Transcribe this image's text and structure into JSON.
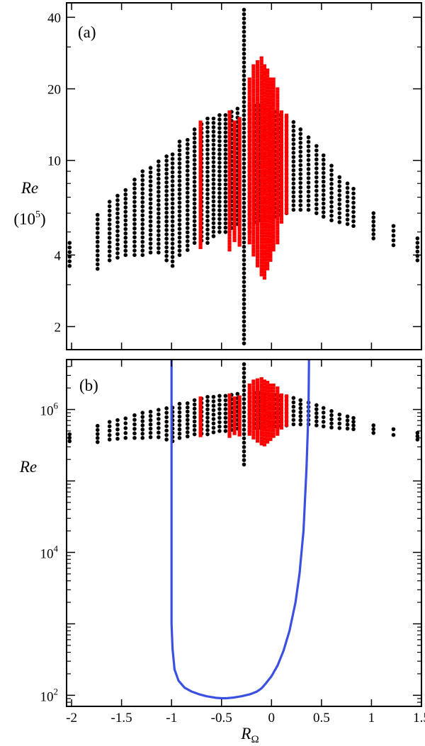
{
  "figure": {
    "background_color": "#ffffff",
    "axis_color": "#000000"
  },
  "chart_data": [
    {
      "type": "scatter",
      "panel_label": "(a)",
      "ylabel": "Re",
      "ylabel_unit": "(10",
      "ylabel_unit_exp": "5",
      "ylabel_unit_close": ")",
      "xlabel": "",
      "yscale": "log",
      "xlim": [
        -2.05,
        1.5
      ],
      "ylim": [
        1.6,
        46
      ],
      "x_ticks": [
        -2,
        -1.5,
        -1,
        -0.5,
        0,
        0.5,
        1,
        1.5
      ],
      "y_ticks": [
        2,
        4,
        10,
        20,
        40
      ],
      "y_tick_labels": [
        "2",
        "4",
        "10",
        "20",
        "40"
      ],
      "grid": false,
      "series": [
        {
          "color": "#000000",
          "marker": "circle",
          "columns": [
            {
              "x": -2.02,
              "ymin": 3.6,
              "ymax": 4.5
            },
            {
              "x": -1.74,
              "ymin": 3.5,
              "ymax": 5.9
            },
            {
              "x": -1.62,
              "ymin": 3.8,
              "ymax": 6.7
            },
            {
              "x": -1.54,
              "ymin": 3.9,
              "ymax": 7.1
            },
            {
              "x": -1.46,
              "ymin": 4.0,
              "ymax": 7.5
            },
            {
              "x": -1.37,
              "ymin": 4.0,
              "ymax": 8.3
            },
            {
              "x": -1.29,
              "ymin": 4.0,
              "ymax": 9.0
            },
            {
              "x": -1.21,
              "ymin": 4.1,
              "ymax": 9.3
            },
            {
              "x": -1.13,
              "ymin": 4.1,
              "ymax": 9.9
            },
            {
              "x": -1.05,
              "ymin": 3.8,
              "ymax": 10.4
            },
            {
              "x": -0.99,
              "ymin": 3.6,
              "ymax": 10.6
            },
            {
              "x": -0.92,
              "ymin": 4.0,
              "ymax": 12.0
            },
            {
              "x": -0.84,
              "ymin": 4.2,
              "ymax": 12.2
            },
            {
              "x": -0.77,
              "ymin": 4.5,
              "ymax": 13.5
            },
            {
              "x": -0.7,
              "ymin": 4.6,
              "ymax": 14.2
            },
            {
              "x": -0.64,
              "ymin": 4.5,
              "ymax": 15.0
            },
            {
              "x": -0.58,
              "ymin": 4.8,
              "ymax": 15.0
            },
            {
              "x": -0.52,
              "ymin": 5.0,
              "ymax": 15.5
            },
            {
              "x": -0.46,
              "ymin": 5.0,
              "ymax": 15.5
            },
            {
              "x": -0.4,
              "ymin": 5.2,
              "ymax": 16.0
            },
            {
              "x": -0.34,
              "ymin": 5.4,
              "ymax": 16.5
            },
            {
              "x": -0.275,
              "ymin": 1.7,
              "ymax": 43
            },
            {
              "x": -0.22,
              "ymin": 5.0,
              "ymax": 17.0
            },
            {
              "x": -0.17,
              "ymin": 5.5,
              "ymax": 17.0
            },
            {
              "x": -0.12,
              "ymin": 5.6,
              "ymax": 17.0
            },
            {
              "x": -0.07,
              "ymin": 5.6,
              "ymax": 16.5
            },
            {
              "x": -0.02,
              "ymin": 5.8,
              "ymax": 16.0
            },
            {
              "x": 0.03,
              "ymin": 5.8,
              "ymax": 16.0
            },
            {
              "x": 0.09,
              "ymin": 5.9,
              "ymax": 15.5
            },
            {
              "x": 0.15,
              "ymin": 6.0,
              "ymax": 15.2
            },
            {
              "x": 0.22,
              "ymin": 6.2,
              "ymax": 14.5
            },
            {
              "x": 0.29,
              "ymin": 6.2,
              "ymax": 13.5
            },
            {
              "x": 0.37,
              "ymin": 6.2,
              "ymax": 12.5
            },
            {
              "x": 0.45,
              "ymin": 6.0,
              "ymax": 11.5
            },
            {
              "x": 0.52,
              "ymin": 5.8,
              "ymax": 10.5
            },
            {
              "x": 0.6,
              "ymin": 5.6,
              "ymax": 9.5
            },
            {
              "x": 0.68,
              "ymin": 5.5,
              "ymax": 8.5
            },
            {
              "x": 0.76,
              "ymin": 5.4,
              "ymax": 8.0
            },
            {
              "x": 0.82,
              "ymin": 5.3,
              "ymax": 7.6
            },
            {
              "x": 1.02,
              "ymin": 4.7,
              "ymax": 6.0
            },
            {
              "x": 1.22,
              "ymin": 4.4,
              "ymax": 5.3
            },
            {
              "x": 1.46,
              "ymin": 3.8,
              "ymax": 4.7
            }
          ]
        },
        {
          "color": "#ff0000",
          "marker": "square",
          "columns": [
            {
              "x": -0.71,
              "ymin": 4.3,
              "ymax": 14.5
            },
            {
              "x": -0.42,
              "ymin": 4.2,
              "ymax": 16.0
            },
            {
              "x": -0.37,
              "ymin": 4.6,
              "ymax": 14.5
            },
            {
              "x": -0.32,
              "ymin": 4.4,
              "ymax": 15.0
            },
            {
              "x": -0.22,
              "ymin": 4.5,
              "ymax": 22
            },
            {
              "x": -0.18,
              "ymin": 4.0,
              "ymax": 25
            },
            {
              "x": -0.14,
              "ymin": 3.6,
              "ymax": 26
            },
            {
              "x": -0.1,
              "ymin": 3.3,
              "ymax": 27
            },
            {
              "x": -0.07,
              "ymin": 3.2,
              "ymax": 25
            },
            {
              "x": -0.04,
              "ymin": 3.5,
              "ymax": 24
            },
            {
              "x": -0.01,
              "ymin": 3.8,
              "ymax": 22
            },
            {
              "x": 0.02,
              "ymin": 4.2,
              "ymax": 22
            },
            {
              "x": 0.06,
              "ymin": 4.5,
              "ymax": 20
            },
            {
              "x": 0.1,
              "ymin": 5.5,
              "ymax": 16.0
            },
            {
              "x": 0.15,
              "ymin": 6.0,
              "ymax": 15.5
            }
          ]
        }
      ]
    },
    {
      "type": "scatter",
      "panel_label": "(b)",
      "ylabel": "Re",
      "xlabel": "R",
      "xlabel_sub": "Ω",
      "yscale": "log",
      "xlim": [
        -2.05,
        1.5
      ],
      "ylim": [
        70,
        5000000
      ],
      "x_ticks": [
        -2,
        -1.5,
        -1,
        -0.5,
        0,
        0.5,
        1,
        1.5
      ],
      "x_tick_labels": [
        "-2",
        "-1.5",
        "-1",
        "-0.5",
        "0",
        "0.5",
        "1",
        "1.5"
      ],
      "y_major_ticks": [
        100,
        10000,
        1000000
      ],
      "y_tick_base": "10",
      "y_tick_exponents": [
        "2",
        "4",
        "6"
      ],
      "grid": false,
      "series": [
        {
          "color": "#000000",
          "marker": "circle",
          "columns": [
            {
              "x": -2.02,
              "ymin": 360000,
              "ymax": 450000
            },
            {
              "x": -1.74,
              "ymin": 350000,
              "ymax": 590000
            },
            {
              "x": -1.62,
              "ymin": 380000,
              "ymax": 670000
            },
            {
              "x": -1.54,
              "ymin": 390000,
              "ymax": 710000
            },
            {
              "x": -1.46,
              "ymin": 400000,
              "ymax": 750000
            },
            {
              "x": -1.37,
              "ymin": 400000,
              "ymax": 830000
            },
            {
              "x": -1.29,
              "ymin": 400000,
              "ymax": 900000
            },
            {
              "x": -1.21,
              "ymin": 410000,
              "ymax": 930000
            },
            {
              "x": -1.13,
              "ymin": 410000,
              "ymax": 990000
            },
            {
              "x": -1.05,
              "ymin": 380000,
              "ymax": 1040000
            },
            {
              "x": -0.99,
              "ymin": 360000,
              "ymax": 1060000
            },
            {
              "x": -0.92,
              "ymin": 400000,
              "ymax": 1200000
            },
            {
              "x": -0.84,
              "ymin": 420000,
              "ymax": 1220000
            },
            {
              "x": -0.77,
              "ymin": 450000,
              "ymax": 1350000
            },
            {
              "x": -0.7,
              "ymin": 460000,
              "ymax": 1420000
            },
            {
              "x": -0.64,
              "ymin": 450000,
              "ymax": 1500000
            },
            {
              "x": -0.58,
              "ymin": 480000,
              "ymax": 1500000
            },
            {
              "x": -0.52,
              "ymin": 500000,
              "ymax": 1550000
            },
            {
              "x": -0.46,
              "ymin": 500000,
              "ymax": 1550000
            },
            {
              "x": -0.4,
              "ymin": 520000,
              "ymax": 1600000
            },
            {
              "x": -0.34,
              "ymin": 540000,
              "ymax": 1650000
            },
            {
              "x": -0.275,
              "ymin": 170000,
              "ymax": 4300000
            },
            {
              "x": -0.22,
              "ymin": 500000,
              "ymax": 1700000
            },
            {
              "x": -0.17,
              "ymin": 550000,
              "ymax": 1700000
            },
            {
              "x": -0.12,
              "ymin": 560000,
              "ymax": 1700000
            },
            {
              "x": -0.07,
              "ymin": 560000,
              "ymax": 1650000
            },
            {
              "x": -0.02,
              "ymin": 580000,
              "ymax": 1600000
            },
            {
              "x": 0.03,
              "ymin": 580000,
              "ymax": 1600000
            },
            {
              "x": 0.09,
              "ymin": 590000,
              "ymax": 1550000
            },
            {
              "x": 0.15,
              "ymin": 600000,
              "ymax": 1520000
            },
            {
              "x": 0.22,
              "ymin": 620000,
              "ymax": 1450000
            },
            {
              "x": 0.29,
              "ymin": 620000,
              "ymax": 1350000
            },
            {
              "x": 0.37,
              "ymin": 620000,
              "ymax": 1250000
            },
            {
              "x": 0.45,
              "ymin": 600000,
              "ymax": 1150000
            },
            {
              "x": 0.52,
              "ymin": 580000,
              "ymax": 1050000
            },
            {
              "x": 0.6,
              "ymin": 560000,
              "ymax": 950000
            },
            {
              "x": 0.68,
              "ymin": 550000,
              "ymax": 850000
            },
            {
              "x": 0.76,
              "ymin": 540000,
              "ymax": 800000
            },
            {
              "x": 0.82,
              "ymin": 530000,
              "ymax": 760000
            },
            {
              "x": 1.02,
              "ymin": 470000,
              "ymax": 600000
            },
            {
              "x": 1.22,
              "ymin": 440000,
              "ymax": 530000
            },
            {
              "x": 1.46,
              "ymin": 380000,
              "ymax": 470000
            }
          ]
        },
        {
          "color": "#ff0000",
          "marker": "square",
          "columns": [
            {
              "x": -0.71,
              "ymin": 430000,
              "ymax": 1450000
            },
            {
              "x": -0.42,
              "ymin": 420000,
              "ymax": 1600000
            },
            {
              "x": -0.37,
              "ymin": 460000,
              "ymax": 1450000
            },
            {
              "x": -0.32,
              "ymin": 440000,
              "ymax": 1500000
            },
            {
              "x": -0.22,
              "ymin": 450000,
              "ymax": 2200000
            },
            {
              "x": -0.18,
              "ymin": 400000,
              "ymax": 2500000
            },
            {
              "x": -0.14,
              "ymin": 360000,
              "ymax": 2600000
            },
            {
              "x": -0.1,
              "ymin": 330000,
              "ymax": 2700000
            },
            {
              "x": -0.07,
              "ymin": 320000,
              "ymax": 2500000
            },
            {
              "x": -0.04,
              "ymin": 350000,
              "ymax": 2400000
            },
            {
              "x": -0.01,
              "ymin": 380000,
              "ymax": 2200000
            },
            {
              "x": 0.02,
              "ymin": 420000,
              "ymax": 2200000
            },
            {
              "x": 0.06,
              "ymin": 450000,
              "ymax": 2000000
            },
            {
              "x": 0.1,
              "ymin": 550000,
              "ymax": 1600000
            },
            {
              "x": 0.15,
              "ymin": 600000,
              "ymax": 1550000
            }
          ]
        },
        {
          "color": "#3b4fe0",
          "marker": "line",
          "points": [
            {
              "x": -1.0,
              "y": 5000000
            },
            {
              "x": -1.0,
              "y": 100000
            },
            {
              "x": -1.0,
              "y": 10000
            },
            {
              "x": -1.0,
              "y": 1000
            },
            {
              "x": -0.99,
              "y": 450
            },
            {
              "x": -0.97,
              "y": 230
            },
            {
              "x": -0.93,
              "y": 160
            },
            {
              "x": -0.87,
              "y": 128
            },
            {
              "x": -0.8,
              "y": 113
            },
            {
              "x": -0.72,
              "y": 103
            },
            {
              "x": -0.65,
              "y": 97
            },
            {
              "x": -0.55,
              "y": 92
            },
            {
              "x": -0.5,
              "y": 91
            },
            {
              "x": -0.45,
              "y": 91
            },
            {
              "x": -0.38,
              "y": 93
            },
            {
              "x": -0.3,
              "y": 97
            },
            {
              "x": -0.22,
              "y": 103
            },
            {
              "x": -0.15,
              "y": 112
            },
            {
              "x": -0.1,
              "y": 125
            },
            {
              "x": -0.06,
              "y": 145
            },
            {
              "x": 0.0,
              "y": 185
            },
            {
              "x": 0.06,
              "y": 260
            },
            {
              "x": 0.12,
              "y": 420
            },
            {
              "x": 0.18,
              "y": 800
            },
            {
              "x": 0.24,
              "y": 2000
            },
            {
              "x": 0.28,
              "y": 5000
            },
            {
              "x": 0.32,
              "y": 20000
            },
            {
              "x": 0.35,
              "y": 150000
            },
            {
              "x": 0.37,
              "y": 1000000
            },
            {
              "x": 0.375,
              "y": 5000000
            }
          ]
        }
      ]
    }
  ]
}
